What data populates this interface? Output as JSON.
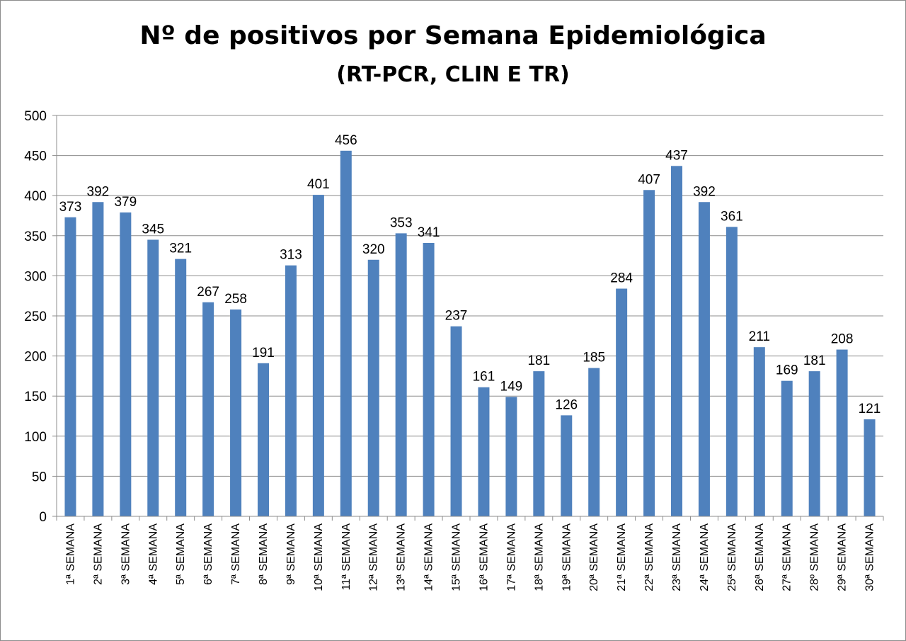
{
  "chart_data": {
    "type": "bar",
    "title": "Nº de positivos por Semana Epidemiológica",
    "subtitle": "(RT-PCR, CLIN E TR)",
    "xlabel": "",
    "ylabel": "",
    "ylim": [
      0,
      500
    ],
    "yticks": [
      0,
      50,
      100,
      150,
      200,
      250,
      300,
      350,
      400,
      450,
      500
    ],
    "grid": true,
    "bar_color": "#4F81BD",
    "categories": [
      "1ª SEMANA",
      "2ª SEMANA",
      "3ª SEMANA",
      "4ª SEMANA",
      "5ª SEMANA",
      "6ª SEMANA",
      "7ª SEMANA",
      "8ª SEMANA",
      "9ª SEMANA",
      "10ª SEMANA",
      "11ª SEMANA",
      "12ª SEMANA",
      "13ª SEMANA",
      "14ª SEMANA",
      "15ª SEMANA",
      "16ª SEMANA",
      "17ª SEMANA",
      "18ª SEMANA",
      "19ª SEMANA",
      "20ª SEMANA",
      "21ª SEMANA",
      "22ª SEMANA",
      "23ª SEMANA",
      "24ª SEMANA",
      "25ª SEMANA",
      "26ª SEMANA",
      "27ª SEMANA",
      "28º SEMANA",
      "29ª SEMANA",
      "30ª SEMANA"
    ],
    "values": [
      373,
      392,
      379,
      345,
      321,
      267,
      258,
      191,
      313,
      401,
      456,
      320,
      353,
      341,
      237,
      161,
      149,
      181,
      126,
      185,
      284,
      407,
      437,
      392,
      361,
      211,
      169,
      181,
      208,
      121
    ]
  }
}
